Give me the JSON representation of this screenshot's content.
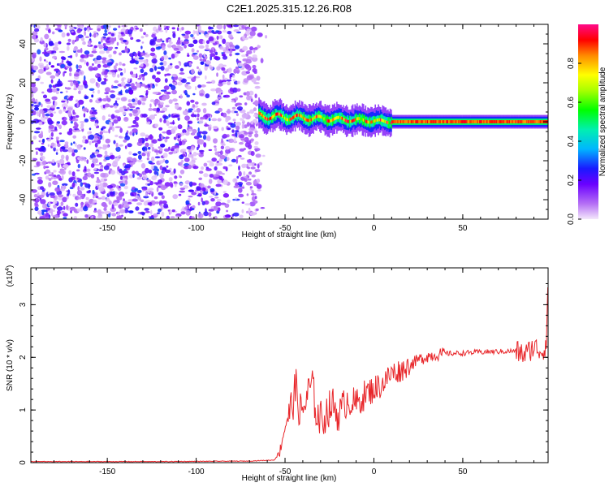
{
  "figure_title": "C2E1.2025.315.12.26.R08",
  "chart_data": [
    {
      "type": "heatmap",
      "title": "C2E1.2025.315.12.26.R08",
      "xlabel": "Height of straight line (km)",
      "ylabel": "Frequency (Hz)",
      "xlim": [
        -193,
        98
      ],
      "ylim": [
        -50,
        50
      ],
      "xticks": [
        -150,
        -100,
        -50,
        0,
        50
      ],
      "yticks": [
        -40,
        -20,
        0,
        20,
        40
      ],
      "colorbar": {
        "label": "Normalized spectral amplitude",
        "range": [
          0.0,
          1.0
        ],
        "ticks": [
          0.0,
          0.2,
          0.4,
          0.6,
          0.8
        ]
      },
      "description_regions": [
        {
          "x_range": [
            -193,
            -65
          ],
          "pattern": "noise",
          "amplitude_range": [
            0.0,
            0.15
          ]
        },
        {
          "x_range": [
            -65,
            10
          ],
          "pattern": "meandering line",
          "center_hz": [
            3,
            0
          ],
          "amplitude_range": [
            0.2,
            1.0
          ]
        },
        {
          "x_range": [
            10,
            98
          ],
          "pattern": "steady line",
          "center_hz": 0,
          "amplitude_range": [
            0.8,
            1.0
          ]
        }
      ]
    },
    {
      "type": "line",
      "xlabel": "Height of straight line (km)",
      "ylabel": "SNR (10 * v/v)",
      "y_scale_note": "(x10^4)",
      "scale_text": "(x10",
      "scale_exp": "4",
      "scale_close": ")",
      "xlim": [
        -193,
        98
      ],
      "ylim": [
        0,
        3.7
      ],
      "xticks": [
        -150,
        -100,
        -50,
        0,
        50
      ],
      "yticks": [
        0,
        1,
        2,
        3
      ],
      "series": [
        {
          "name": "SNR",
          "color": "#e8262a",
          "x": [
            -193,
            -120,
            -70,
            -56,
            -53,
            -50,
            -47,
            -44,
            -41,
            -38,
            -35,
            -32,
            -29,
            -26,
            -23,
            -20,
            -15,
            -10,
            -5,
            0,
            5,
            10,
            15,
            20,
            25,
            30,
            35,
            40,
            50,
            60,
            70,
            80,
            85,
            90,
            95,
            97,
            98
          ],
          "values": [
            0.02,
            0.02,
            0.03,
            0.05,
            0.2,
            0.7,
            1.0,
            1.4,
            0.9,
            1.2,
            1.5,
            0.9,
            0.8,
            1.0,
            1.1,
            0.9,
            1.2,
            1.1,
            1.3,
            1.4,
            1.5,
            1.7,
            1.75,
            1.85,
            1.95,
            2.02,
            2.05,
            2.07,
            2.08,
            2.1,
            2.11,
            2.12,
            2.05,
            2.2,
            2.1,
            2.3,
            3.6
          ]
        }
      ]
    }
  ]
}
